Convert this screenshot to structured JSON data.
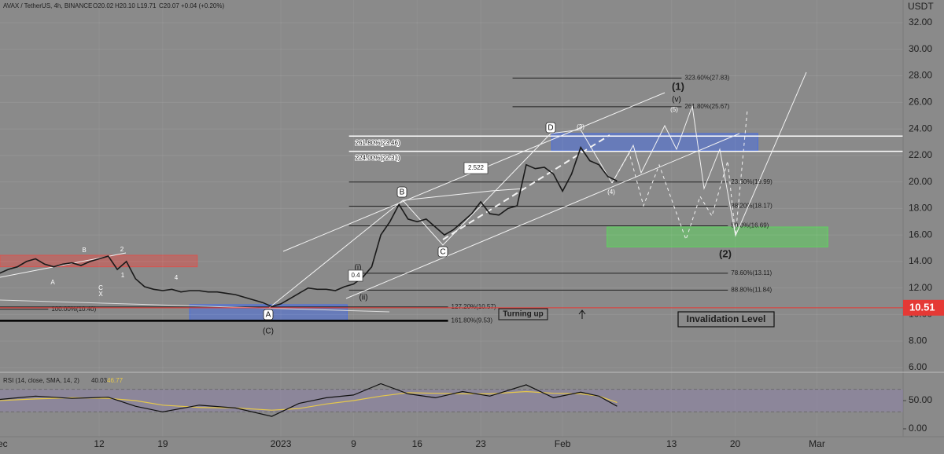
{
  "chart_data": {
    "type": "line",
    "title": "AVAX / TetherUS, 4h, BINANCE",
    "ohlc": [
      "O20.02",
      "H20.10",
      "L19.71",
      "C20.07",
      "+0.04 (+0.20%)"
    ],
    "y_axis_label": "USDT",
    "x": [
      1,
      2,
      3,
      4,
      5,
      6,
      7,
      8,
      9,
      10,
      11,
      12,
      13,
      14,
      15,
      16,
      17,
      18,
      19,
      20,
      21,
      22,
      23,
      24,
      25,
      26,
      27,
      28,
      29,
      30,
      31,
      32,
      33,
      34,
      35,
      36,
      37,
      38,
      39,
      40,
      41,
      42,
      43,
      44,
      45,
      46,
      47,
      48,
      49,
      50,
      51,
      52,
      53,
      54,
      55,
      56,
      57,
      58,
      59,
      60,
      61,
      62,
      63,
      64,
      65,
      66,
      67,
      68,
      69
    ],
    "values": [
      13.1,
      13.4,
      13.6,
      14.0,
      14.2,
      13.8,
      13.6,
      13.8,
      13.9,
      13.7,
      14.0,
      14.2,
      14.4,
      13.4,
      14.0,
      12.7,
      12.1,
      11.9,
      11.8,
      11.9,
      11.7,
      11.8,
      11.8,
      11.7,
      11.7,
      11.6,
      11.5,
      11.3,
      11.1,
      10.9,
      10.6,
      10.8,
      11.2,
      11.6,
      12.0,
      11.9,
      11.9,
      11.8,
      12.1,
      12.3,
      12.8,
      13.6,
      16.0,
      17.0,
      18.3,
      17.2,
      17.0,
      17.2,
      16.6,
      16.0,
      16.4,
      17.0,
      17.6,
      18.5,
      17.6,
      17.5,
      18.0,
      18.2,
      21.3,
      21.0,
      21.1,
      20.6,
      19.3,
      20.6,
      22.6,
      21.6,
      21.3,
      20.4,
      20.07
    ],
    "color": "#1a1a1a",
    "xlim": [
      1.09,
      100.48
    ],
    "ylim": [
      5.76,
      33.72
    ],
    "xticks": [
      {
        "value": 1,
        "label": "Dec"
      },
      12,
      19,
      {
        "value": 32,
        "label": "2023"
      },
      {
        "value": 40,
        "label": "9"
      },
      {
        "value": 47,
        "label": "16"
      },
      {
        "value": 54,
        "label": "23"
      },
      {
        "value": 63,
        "label": "Feb"
      },
      {
        "value": 75,
        "label": "13"
      },
      {
        "value": 82,
        "label": "20"
      },
      {
        "value": 91,
        "label": "Mar"
      }
    ],
    "yticks": [
      {
        "value": 6,
        "label": "6.00"
      },
      {
        "value": 8,
        "label": "8.00"
      },
      {
        "value": 10,
        "label": "10.00"
      },
      {
        "value": 12,
        "label": "12.00"
      },
      {
        "value": 14,
        "label": "14.00"
      },
      {
        "value": 16,
        "label": "16.00"
      },
      {
        "value": 18,
        "label": "18.00"
      },
      {
        "value": 20,
        "label": "20.00"
      },
      {
        "value": 22,
        "label": "22.00"
      },
      {
        "value": 24,
        "label": "24.00"
      },
      {
        "value": 26,
        "label": "26.00"
      },
      {
        "value": 28,
        "label": "28.00"
      },
      {
        "value": 30,
        "label": "30.00"
      },
      {
        "value": 32,
        "label": "32.00"
      }
    ],
    "grid": true,
    "price_tag": {
      "value": 10.51,
      "color": "#e53935"
    },
    "fib_levels": [
      {
        "label": "323.60%(27.83)",
        "value": 27.83,
        "from": 57.5,
        "to": 76.1,
        "color": "#222222"
      },
      {
        "label": "261.80%(25.67)",
        "value": 25.67,
        "from": 57.5,
        "to": 76.1,
        "color": "#222222"
      },
      {
        "label": "261.80%(23.46)",
        "value": 23.46,
        "from": 39.5,
        "to": 100.48,
        "color": "#ffffff"
      },
      {
        "label": "224.00%(22.31)",
        "value": 22.31,
        "from": 39.5,
        "to": 100.48,
        "color": "#ffffff"
      },
      {
        "label": "23.60%(19.99)",
        "value": 19.99,
        "from": 39.5,
        "to": 81.2,
        "color": "#222222"
      },
      {
        "label": "38.20%(18.17)",
        "value": 18.17,
        "from": 39.5,
        "to": 81.2,
        "color": "#222222"
      },
      {
        "label": "50.0%(16.69)",
        "value": 16.69,
        "from": 39.5,
        "to": 81.2,
        "color": "#222222"
      },
      {
        "label": "78.60%(13.11)",
        "value": 13.11,
        "from": 39.5,
        "to": 81.2,
        "color": "#222222"
      },
      {
        "label": "88.80%(11.84)",
        "value": 11.84,
        "from": 39.5,
        "to": 81.2,
        "color": "#222222"
      },
      {
        "label": "127.20%(10.57)",
        "value": 10.57,
        "from": 1.09,
        "to": 50.4,
        "color": "#222222"
      },
      {
        "label": "100.00%(10.40)",
        "value": 10.4,
        "from": 1.09,
        "to": 6.4,
        "color": "#222222"
      },
      {
        "label": "161.80%(9.53)",
        "value": 9.53,
        "from": 1.09,
        "to": 50.4,
        "color": "#000000"
      }
    ],
    "zones": [
      {
        "from": 1.09,
        "to": 22.8,
        "low": 13.6,
        "high": 14.47,
        "color": "#d9534f"
      },
      {
        "from": 21.96,
        "to": 39.3,
        "low": 9.55,
        "high": 10.74,
        "color": "#4a6fe0"
      },
      {
        "from": 61.8,
        "to": 84.5,
        "low": 22.35,
        "high": 23.65,
        "color": "#4a6fe0"
      },
      {
        "from": 67.9,
        "to": 92.2,
        "low": 15.1,
        "high": 16.6,
        "color": "#5fd35f"
      }
    ],
    "annotations": [
      "(1)",
      "(2)",
      "D",
      "B",
      "C",
      "A",
      "(C)",
      "(3)",
      "(4)",
      "(5)",
      "(v)",
      "(i)",
      "(ii)",
      "2.522",
      "0.4",
      "Turning up",
      "Invalidation Level",
      "B",
      "A",
      "C",
      "X",
      "2",
      "1",
      "4"
    ],
    "rsi": {
      "title": "RSI (14, close, SMA, 14, 2)",
      "x": [
        1,
        5,
        9,
        13,
        16,
        19,
        23,
        27,
        31,
        34,
        37,
        40,
        43,
        46,
        49,
        52,
        55,
        59,
        62,
        65,
        67,
        69
      ],
      "values": [
        52,
        58,
        54,
        56,
        40,
        30,
        42,
        37,
        22,
        45,
        55,
        60,
        80,
        62,
        55,
        66,
        58,
        78,
        55,
        65,
        58,
        40.03
      ],
      "sma": [
        50,
        53,
        55,
        54,
        50,
        42,
        38,
        37,
        33,
        36,
        44,
        50,
        58,
        64,
        63,
        62,
        62,
        66,
        63,
        62,
        58,
        46.77
      ],
      "color": "#111111",
      "sma_color": "#e6c84a",
      "ylim": [
        -14,
        96
      ],
      "yticks": [
        {
          "value": 0,
          "label": "0.00"
        },
        {
          "value": 50,
          "label": "50.00"
        }
      ],
      "band": [
        30,
        70
      ]
    }
  }
}
